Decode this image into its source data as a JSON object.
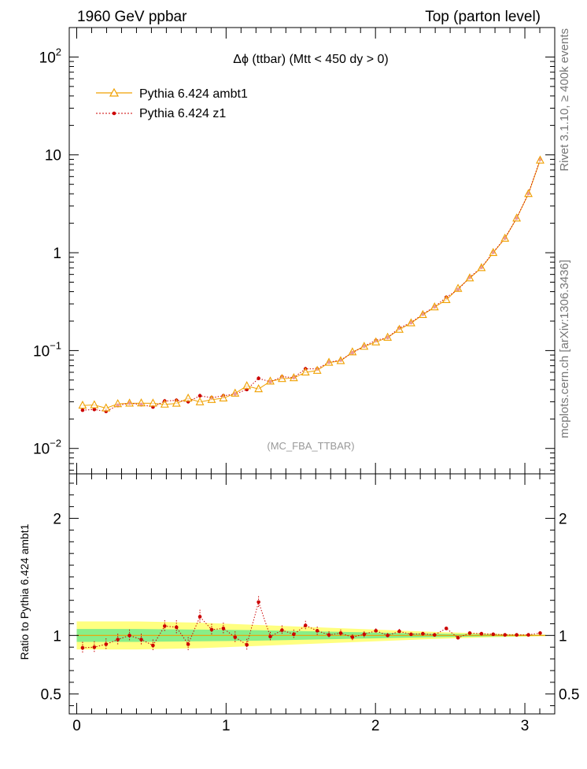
{
  "header": {
    "left": "1960 GeV ppbar",
    "right": "Top (parton level)"
  },
  "side": {
    "rivet": "Rivet 3.1.10, ≥ 400k events",
    "mcplots": "mcplots.cern.ch [arXiv:1306.3436]"
  },
  "chart_data": [
    {
      "type": "line",
      "title": "Δϕ (ttbar) (Mtt < 450 dy > 0)",
      "watermark": "(MC_FBA_TTBAR)",
      "yscale": "log",
      "xlim": [
        -0.05,
        3.2
      ],
      "ylim": [
        0.0055,
        200
      ],
      "ytick_labels": [
        {
          "value": 0.01,
          "base": "10",
          "exp": "−2"
        },
        {
          "value": 0.1,
          "base": "10",
          "exp": "−1"
        },
        {
          "value": 1,
          "base": "1",
          "exp": ""
        },
        {
          "value": 10,
          "base": "10",
          "exp": ""
        },
        {
          "value": 100,
          "base": "10",
          "exp": "2"
        }
      ],
      "legend_placement": "top-left",
      "x": [
        0.0393,
        0.1178,
        0.1963,
        0.2749,
        0.3534,
        0.432,
        0.5105,
        0.589,
        0.6676,
        0.7461,
        0.8247,
        0.9032,
        0.9817,
        1.0603,
        1.1388,
        1.2174,
        1.2959,
        1.3744,
        1.453,
        1.5315,
        1.6101,
        1.6886,
        1.7671,
        1.8457,
        1.9242,
        2.0028,
        2.0813,
        2.1598,
        2.2384,
        2.3169,
        2.3955,
        2.474,
        2.5525,
        2.6311,
        2.7096,
        2.7882,
        2.8667,
        2.9452,
        3.0238,
        3.1023
      ],
      "series": [
        {
          "name": "Pythia 6.424 ambt1",
          "color": "#f0a000",
          "marker": "open-triangle",
          "values": [
            0.0275,
            0.0278,
            0.0258,
            0.0285,
            0.0289,
            0.029,
            0.0289,
            0.0282,
            0.0288,
            0.0325,
            0.0298,
            0.0315,
            0.0326,
            0.0365,
            0.0435,
            0.0405,
            0.0485,
            0.0515,
            0.0525,
            0.06,
            0.0625,
            0.0755,
            0.0785,
            0.0965,
            0.11,
            0.122,
            0.136,
            0.164,
            0.191,
            0.232,
            0.278,
            0.33,
            0.43,
            0.55,
            0.7,
            1.0,
            1.4,
            2.25,
            4.0,
            8.8
          ]
        },
        {
          "name": "Pythia 6.424 z1",
          "color": "#cc0000",
          "marker": "filled-dot",
          "values": [
            0.0246,
            0.025,
            0.0239,
            0.0275,
            0.029,
            0.028,
            0.0265,
            0.0305,
            0.031,
            0.03,
            0.0345,
            0.033,
            0.0345,
            0.036,
            0.04,
            0.052,
            0.048,
            0.054,
            0.053,
            0.065,
            0.065,
            0.076,
            0.08,
            0.095,
            0.111,
            0.127,
            0.136,
            0.17,
            0.193,
            0.236,
            0.28,
            0.35,
            0.42,
            0.56,
            0.71,
            1.01,
            1.41,
            2.26,
            4.02,
            8.98
          ]
        }
      ]
    },
    {
      "type": "line",
      "ylabel": "Ratio to Pythia 6.424 ambt1",
      "xlim": [
        -0.05,
        3.2
      ],
      "ylim": [
        0.33,
        2.38
      ],
      "x_ticks": [
        0,
        1,
        2,
        3
      ],
      "y_ticks": [
        0.5,
        1,
        2
      ],
      "reference_line": 1,
      "bands": {
        "inner_color": "#88ee88",
        "outer_color": "#ffff80",
        "x": [
          0.0,
          0.4,
          0.8,
          1.2,
          1.6,
          2.0,
          2.4,
          2.8,
          3.14
        ],
        "inner_halfwidth": [
          0.055,
          0.055,
          0.05,
          0.045,
          0.035,
          0.025,
          0.015,
          0.008,
          0.004
        ],
        "outer_halfwidth": [
          0.12,
          0.12,
          0.11,
          0.09,
          0.07,
          0.05,
          0.03,
          0.015,
          0.006
        ]
      },
      "series": [
        {
          "name": "Pythia 6.424 z1",
          "color": "#cc0000",
          "values": [
            0.895,
            0.9,
            0.925,
            0.965,
            1.0,
            0.965,
            0.915,
            1.08,
            1.07,
            0.925,
            1.16,
            1.05,
            1.06,
            0.985,
            0.92,
            1.285,
            0.99,
            1.045,
            1.01,
            1.085,
            1.04,
            1.005,
            1.02,
            0.985,
            1.01,
            1.04,
            1.0,
            1.035,
            1.01,
            1.015,
            1.005,
            1.06,
            0.98,
            1.02,
            1.015,
            1.01,
            1.005,
            1.005,
            1.005,
            1.02
          ],
          "errors": [
            0.05,
            0.05,
            0.05,
            0.05,
            0.05,
            0.05,
            0.05,
            0.05,
            0.06,
            0.06,
            0.06,
            0.05,
            0.05,
            0.05,
            0.05,
            0.05,
            0.04,
            0.04,
            0.04,
            0.04,
            0.035,
            0.03,
            0.03,
            0.025,
            0.025,
            0.02,
            0.02,
            0.02,
            0.015,
            0.015,
            0.015,
            0.012,
            0.01,
            0.01,
            0.01,
            0.008,
            0.006,
            0.005,
            0.004,
            0.003
          ]
        }
      ]
    }
  ]
}
